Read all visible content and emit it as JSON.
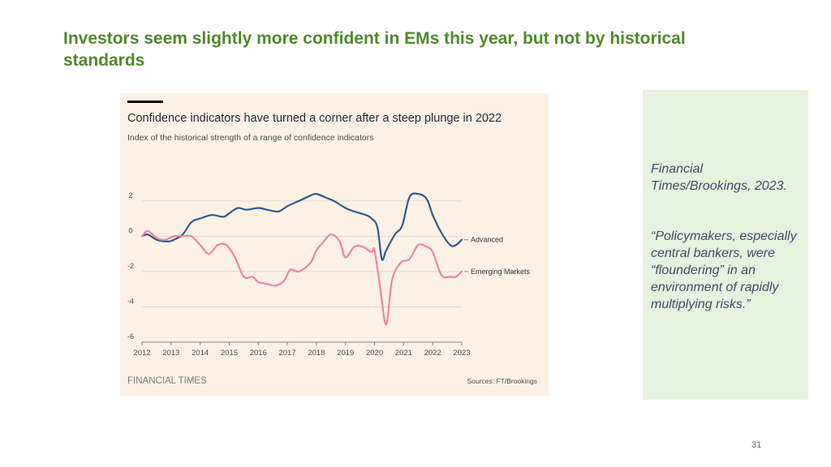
{
  "slide": {
    "title": "Investors seem slightly more confident in EMs this year, but not by historical standards",
    "page_number": "31"
  },
  "sidebar": {
    "source": "Financial Times/Brookings, 2023.",
    "quote": "“Policymakers, especially central bankers, were “floundering” in an environment of rapidly multiplying risks.”"
  },
  "footer": {
    "brand": "FINANCIAL TIMES",
    "sources": "Sources: FT/Brookings"
  },
  "colors": {
    "title": "#4e8a2c",
    "panel_bg": "#fdf1e6",
    "sidebar_bg": "#e6f1de",
    "advanced": "#2f5b8c",
    "emerging": "#f0849f",
    "grid": "#e3d7cc"
  },
  "chart_data": {
    "type": "line",
    "title": "Confidence indicators have turned a corner after a steep plunge in 2022",
    "subtitle": "Index of the historical strength of a range of confidence indicators",
    "xlabel": "",
    "ylabel": "",
    "xlim": [
      2012,
      2023
    ],
    "ylim": [
      -6,
      3
    ],
    "y_ticks": [
      2,
      0,
      -2,
      -4,
      -6
    ],
    "y_tick_labels": [
      "2",
      "0",
      "-2",
      "-4",
      "-6"
    ],
    "x_ticks": [
      2012,
      2013,
      2014,
      2015,
      2016,
      2017,
      2018,
      2019,
      2020,
      2021,
      2022,
      2023
    ],
    "x_tick_labels": [
      "2012",
      "2013",
      "2014",
      "2015",
      "2016",
      "2017",
      "2018",
      "2019",
      "2020",
      "2021",
      "2022",
      "2023"
    ],
    "series": [
      {
        "name": "Advanced",
        "color": "#2f5b8c",
        "x": [
          2012,
          2012.2,
          2012.5,
          2012.9,
          2013.1,
          2013.4,
          2013.7,
          2014.0,
          2014.4,
          2014.8,
          2015.0,
          2015.3,
          2015.6,
          2016.0,
          2016.3,
          2016.7,
          2017.0,
          2017.4,
          2017.8,
          2018.0,
          2018.3,
          2018.6,
          2019.0,
          2019.3,
          2019.7,
          2019.9,
          2020.1,
          2020.25,
          2020.4,
          2020.7,
          2020.95,
          2021.2,
          2021.5,
          2021.8,
          2022.0,
          2022.3,
          2022.6,
          2022.8,
          2023.0
        ],
        "values": [
          0.0,
          0.1,
          -0.2,
          -0.3,
          -0.2,
          0.1,
          0.8,
          1.0,
          1.2,
          1.1,
          1.3,
          1.6,
          1.5,
          1.6,
          1.5,
          1.4,
          1.7,
          2.0,
          2.3,
          2.4,
          2.2,
          2.0,
          1.6,
          1.4,
          1.2,
          1.0,
          0.5,
          -1.3,
          -0.8,
          0.1,
          0.6,
          2.2,
          2.4,
          2.1,
          1.2,
          0.2,
          -0.5,
          -0.5,
          -0.2
        ]
      },
      {
        "name": "Emerging Markets",
        "color": "#f0849f",
        "x": [
          2012,
          2012.2,
          2012.5,
          2012.8,
          2013.1,
          2013.4,
          2013.7,
          2014.0,
          2014.3,
          2014.6,
          2014.9,
          2015.2,
          2015.5,
          2015.8,
          2016.0,
          2016.3,
          2016.6,
          2016.9,
          2017.1,
          2017.4,
          2017.8,
          2018.0,
          2018.2,
          2018.5,
          2018.8,
          2019.0,
          2019.3,
          2019.6,
          2019.9,
          2020.0,
          2020.2,
          2020.4,
          2020.6,
          2020.9,
          2021.2,
          2021.5,
          2021.8,
          2022.0,
          2022.3,
          2022.6,
          2022.8,
          2023.0
        ],
        "values": [
          0.0,
          0.3,
          -0.1,
          -0.2,
          0.0,
          0.0,
          0.0,
          -0.5,
          -1.0,
          -0.5,
          -0.5,
          -1.2,
          -2.3,
          -2.3,
          -2.6,
          -2.7,
          -2.8,
          -2.5,
          -1.9,
          -2.0,
          -1.5,
          -0.8,
          -0.4,
          0.1,
          -0.3,
          -1.2,
          -0.6,
          -0.6,
          -0.9,
          -0.8,
          -3.0,
          -5.0,
          -2.5,
          -1.5,
          -1.3,
          -0.5,
          -0.6,
          -0.9,
          -2.2,
          -2.3,
          -2.3,
          -2.0
        ]
      }
    ]
  }
}
